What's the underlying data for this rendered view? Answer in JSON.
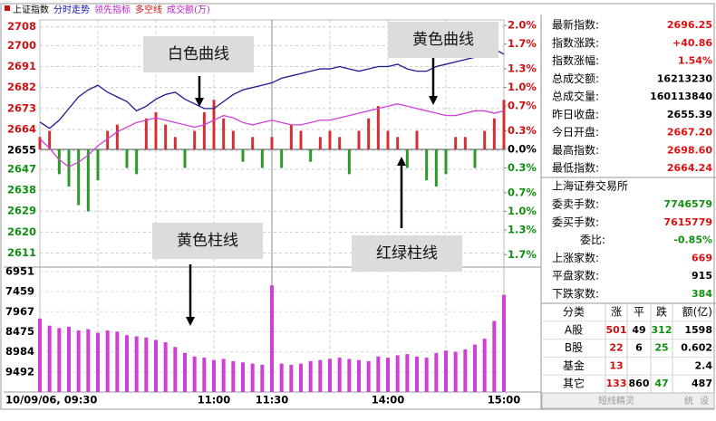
{
  "chart_data": [
    {
      "type": "line",
      "legend": [
        {
          "text": "上证指数",
          "color": "#000000"
        },
        {
          "text": "分时走势",
          "color": "#1010b0"
        },
        {
          "text": "领先指标",
          "color": "#c020c0"
        },
        {
          "text": "多空线",
          "color": "#d01010"
        },
        {
          "text": "成交额(万)",
          "color": "#c020c0"
        }
      ],
      "series": [
        {
          "name": "白色曲线",
          "color": "#1c1c90",
          "values": [
            2667.2,
            2664.5,
            2668,
            2673,
            2678,
            2681,
            2683,
            2680,
            2678,
            2676,
            2672,
            2674,
            2677,
            2679,
            2680,
            2677,
            2675,
            2673,
            2673,
            2676,
            2679,
            2681,
            2682,
            2683,
            2684,
            2686,
            2687,
            2688,
            2689,
            2690,
            2690,
            2691,
            2690,
            2689,
            2690,
            2691,
            2691,
            2692,
            2690,
            2689,
            2689,
            2691,
            2692,
            2693,
            2694,
            2695,
            2695,
            2698.6,
            2696.25
          ]
        },
        {
          "name": "黄色曲线",
          "color": "#d040d8",
          "values": [
            2660,
            2656,
            2651,
            2648,
            2650,
            2653,
            2657,
            2660,
            2663,
            2665,
            2667,
            2668,
            2669,
            2668,
            2667,
            2666,
            2665,
            2666,
            2668,
            2670,
            2669,
            2667,
            2666,
            2667,
            2668,
            2667,
            2666,
            2666,
            2667,
            2668,
            2668,
            2669,
            2670,
            2671,
            2672,
            2673,
            2674,
            2675,
            2674,
            2673,
            2672,
            2671,
            2670,
            2670,
            2671,
            2672,
            2672,
            2671,
            2672
          ]
        },
        {
          "name": "红绿柱线",
          "type": "bar",
          "axis": "y2",
          "color": "#d03030",
          "negative_color": "#2a9a2a",
          "values": [
            0.2,
            0.3,
            -0.4,
            -0.6,
            -0.9,
            -1.0,
            -0.5,
            0.3,
            0.4,
            -0.3,
            -0.4,
            0.5,
            0.6,
            0.4,
            0.2,
            -0.3,
            0.3,
            0.6,
            0.8,
            0.5,
            0.3,
            -0.2,
            0.2,
            -0.3,
            0.2,
            -0.3,
            0.4,
            0.3,
            -0.2,
            0.2,
            0.3,
            0.2,
            -0.4,
            0.3,
            0.5,
            0.7,
            0.3,
            0.2,
            -0.3,
            0.3,
            -0.5,
            -0.6,
            -0.4,
            0.2,
            0.2,
            -0.3,
            0.3,
            0.5,
            0.8
          ]
        }
      ],
      "ylim": [
        2605,
        2711
      ],
      "yticks": [
        2708,
        2700,
        2691,
        2682,
        2673,
        2664,
        2655,
        2647,
        2638,
        2629,
        2620,
        2611
      ],
      "y2lim": [
        -1.9,
        2.09
      ],
      "y2ticks": [
        {
          "value": 2.0,
          "label": "2.0%"
        },
        {
          "value": 1.7,
          "label": "1.7%"
        },
        {
          "value": 1.3,
          "label": "1.3%"
        },
        {
          "value": 1.0,
          "label": "1.0%"
        },
        {
          "value": 0.7,
          "label": "0.7%"
        },
        {
          "value": 0.3,
          "label": "0.3%"
        },
        {
          "value": 0.0,
          "label": "0.0%"
        },
        {
          "value": -0.3,
          "label": "0.3%"
        },
        {
          "value": -0.7,
          "label": "0.7%"
        },
        {
          "value": -1.0,
          "label": "1.0%"
        },
        {
          "value": -1.3,
          "label": "1.3%"
        },
        {
          "value": -1.7,
          "label": "1.7%"
        }
      ],
      "annotations": [
        "白色曲线",
        "黄色曲线",
        "红绿柱线"
      ]
    },
    {
      "type": "bar",
      "categories": [
        "10/09/06, 09:30",
        null,
        null,
        null,
        null,
        null,
        null,
        null,
        null,
        null,
        null,
        null,
        null,
        null,
        null,
        null,
        null,
        null,
        "11:00",
        null,
        null,
        null,
        null,
        null,
        "11:30",
        null,
        null,
        null,
        null,
        null,
        null,
        null,
        null,
        null,
        null,
        null,
        "14:00",
        null,
        null,
        null,
        null,
        null,
        null,
        null,
        null,
        null,
        null,
        null,
        "15:00"
      ],
      "series": [
        {
          "name": "黄色柱线",
          "color": "#d040d8",
          "values": [
            620000,
            560000,
            540000,
            550000,
            520000,
            530000,
            500000,
            520000,
            510000,
            480000,
            470000,
            460000,
            440000,
            420000,
            380000,
            330000,
            300000,
            290000,
            270000,
            280000,
            260000,
            250000,
            240000,
            230000,
            900000,
            240000,
            230000,
            240000,
            260000,
            270000,
            280000,
            290000,
            280000,
            270000,
            260000,
            300000,
            290000,
            310000,
            320000,
            300000,
            290000,
            330000,
            350000,
            340000,
            360000,
            400000,
            450000,
            600000,
            820000
          ]
        }
      ],
      "ylim": [
        0,
        1039000
      ],
      "yticks": [
        {
          "value": 1016951,
          "label": "6951"
        },
        {
          "value": 847459,
          "label": "7459"
        },
        {
          "value": 677967,
          "label": "7967"
        },
        {
          "value": 508475,
          "label": "8475"
        },
        {
          "value": 338984,
          "label": "8984"
        },
        {
          "value": 169492,
          "label": "9492"
        }
      ],
      "annotations": [
        "黄色柱线"
      ]
    }
  ],
  "quote_panel": {
    "rows": [
      {
        "label": "最新指数:",
        "value": "2696.25",
        "color": "#e01010"
      },
      {
        "label": "指数涨跌:",
        "value": "+40.86",
        "color": "#e01010"
      },
      {
        "label": "指数涨幅:",
        "value": "1.54%",
        "color": "#e01010"
      },
      {
        "label": "总成交额:",
        "value": "16213230",
        "color": "#000000"
      },
      {
        "label": "总成交量:",
        "value": "160113840",
        "color": "#000000"
      },
      {
        "label": "昨日收盘:",
        "value": "2655.39",
        "color": "#000000"
      },
      {
        "label": "今日开盘:",
        "value": "2667.20",
        "color": "#e01010"
      },
      {
        "label": "最高指数:",
        "value": "2698.60",
        "color": "#e01010"
      },
      {
        "label": "最低指数:",
        "value": "2664.24",
        "color": "#e01010"
      }
    ],
    "exchange": "上海证券交易所",
    "rows2": [
      {
        "label": "委卖手数:",
        "value": "7746579",
        "color": "#109010"
      },
      {
        "label": "委买手数:",
        "value": "7615779",
        "color": "#e01010"
      },
      {
        "label": "委比:",
        "value": "-0.85%",
        "color": "#109010"
      },
      {
        "label": "上涨家数:",
        "value": "669",
        "color": "#e01010"
      },
      {
        "label": "平盘家数:",
        "value": "915",
        "color": "#000000"
      },
      {
        "label": "下跌家数:",
        "value": "384",
        "color": "#109010"
      }
    ],
    "table": {
      "header": [
        "分类",
        "涨",
        "平",
        "跌",
        "额(亿)"
      ],
      "rows": [
        [
          "A股",
          "501",
          "49",
          "312",
          "1598"
        ],
        [
          "B股",
          "22",
          "6",
          "25",
          "0.602"
        ],
        [
          "基金",
          "13",
          null,
          null,
          "2.4"
        ],
        [
          "其它",
          "133",
          "860",
          "47",
          "487"
        ]
      ]
    },
    "footer": [
      "短线精灵",
      "统",
      "设"
    ]
  }
}
